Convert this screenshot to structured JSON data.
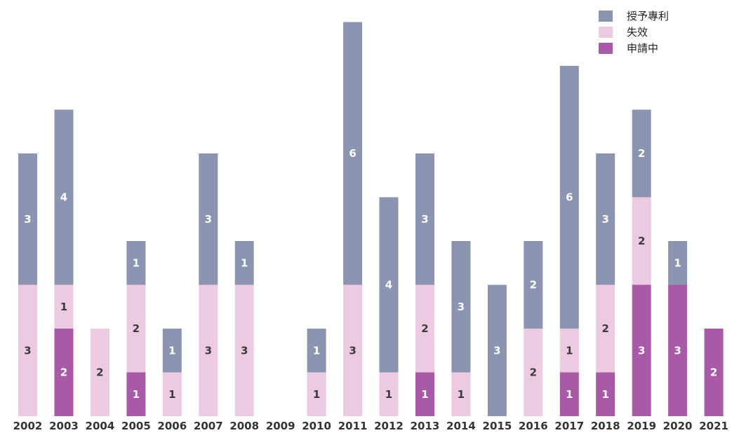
{
  "chart_data": {
    "type": "bar",
    "stacked": true,
    "categories": [
      "2002",
      "2003",
      "2004",
      "2005",
      "2006",
      "2007",
      "2008",
      "2009",
      "2010",
      "2011",
      "2012",
      "2013",
      "2014",
      "2015",
      "2016",
      "2017",
      "2018",
      "2019",
      "2020",
      "2021"
    ],
    "series": [
      {
        "name": "申請中",
        "color": "#a95aa6",
        "values": [
          0,
          2,
          0,
          1,
          0,
          0,
          0,
          0,
          0,
          0,
          0,
          1,
          0,
          0,
          0,
          1,
          1,
          3,
          3,
          2
        ]
      },
      {
        "name": "失效",
        "color": "#eccae2",
        "values": [
          3,
          1,
          2,
          2,
          1,
          3,
          3,
          0,
          1,
          3,
          1,
          2,
          1,
          0,
          2,
          1,
          2,
          2,
          0,
          0
        ]
      },
      {
        "name": "授予專利",
        "color": "#8b95b2",
        "values": [
          3,
          4,
          0,
          1,
          1,
          3,
          1,
          0,
          1,
          6,
          4,
          3,
          3,
          3,
          2,
          6,
          3,
          2,
          1,
          0
        ]
      }
    ],
    "legend_order": [
      "授予專利",
      "失效",
      "申請中"
    ],
    "legend_position": "top-right",
    "ylim": [
      0,
      9
    ],
    "grid": false,
    "title": "",
    "xlabel": "",
    "ylabel": ""
  }
}
